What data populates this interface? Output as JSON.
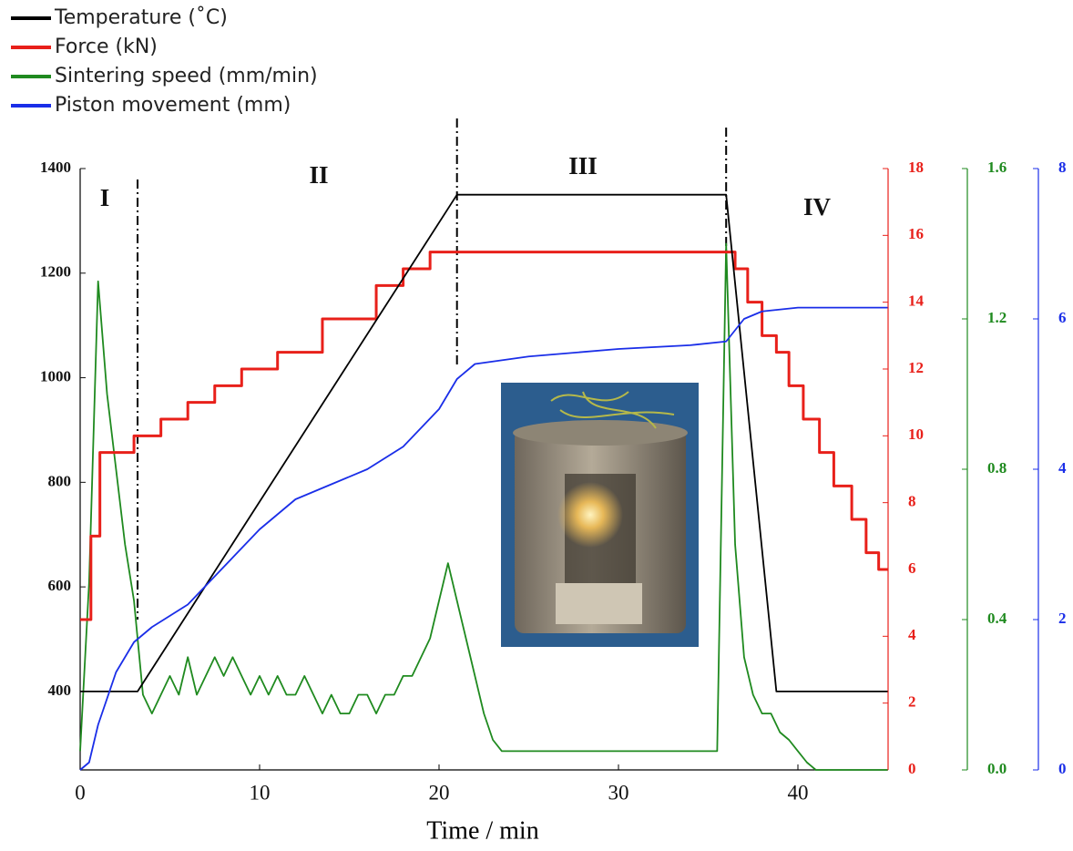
{
  "chart_data": {
    "type": "line",
    "xlabel": "Time / min",
    "xlim": [
      0,
      45
    ],
    "xticks": [
      0,
      10,
      20,
      30,
      40
    ],
    "ylim": [
      250,
      1400
    ],
    "yticks": [
      400,
      600,
      800,
      1000,
      1200,
      1400
    ],
    "y2lim": [
      0,
      18
    ],
    "y2ticks": [
      0,
      2,
      4,
      6,
      8,
      10,
      12,
      14,
      16,
      18
    ],
    "y3lim": [
      0,
      1.6
    ],
    "y3ticks": [
      {
        "value": 0,
        "label": "0.0"
      },
      0.4,
      0.8,
      1.2,
      1.6
    ],
    "y4lim": [
      0,
      8
    ],
    "y4ticks": [
      0,
      2,
      4,
      6,
      8
    ],
    "phases": [
      "I",
      "II",
      "III",
      "IV"
    ],
    "phase_boundaries": [
      3.2,
      21,
      36
    ],
    "series": [
      {
        "name": "Temperature (˚C)",
        "color": "#000000",
        "axis": "y",
        "x": [
          0,
          3.2,
          21,
          36,
          38.8,
          45
        ],
        "values": [
          400,
          400,
          1350,
          1350,
          400,
          400
        ]
      },
      {
        "name": "Force (kN)",
        "color": "#e8201a",
        "axis": "y2",
        "x": [
          0,
          0.6,
          0.6,
          1.1,
          1.1,
          3,
          3,
          4.5,
          4.5,
          6,
          6,
          7.5,
          7.5,
          9,
          9,
          11,
          11,
          13.5,
          13.5,
          16.5,
          16.5,
          18,
          18,
          19.5,
          19.5,
          36.5,
          36.5,
          37.2,
          37.2,
          38,
          38,
          38.8,
          38.8,
          39.5,
          39.5,
          40.3,
          40.3,
          41.2,
          41.2,
          42,
          42,
          43,
          43,
          43.8,
          43.8,
          44.5,
          44.5,
          45
        ],
        "values": [
          4.5,
          4.5,
          7,
          7,
          9.5,
          9.5,
          10,
          10,
          10.5,
          10.5,
          11,
          11,
          11.5,
          11.5,
          12,
          12,
          12.5,
          12.5,
          13.5,
          13.5,
          14.5,
          14.5,
          15,
          15,
          15.5,
          15.5,
          15,
          15,
          14,
          14,
          13,
          13,
          12.5,
          12.5,
          11.5,
          11.5,
          10.5,
          10.5,
          9.5,
          9.5,
          8.5,
          8.5,
          7.5,
          7.5,
          6.5,
          6.5,
          6,
          6
        ]
      },
      {
        "name": "Sintering speed (mm/min)",
        "color": "#1f8a1f",
        "axis": "y3",
        "x": [
          0,
          0.5,
          1,
          1.5,
          2,
          2.5,
          3,
          3.5,
          4,
          4.5,
          5,
          5.5,
          6,
          6.5,
          7,
          7.5,
          8,
          8.5,
          9,
          9.5,
          10,
          10.5,
          11,
          11.5,
          12,
          12.5,
          13,
          13.5,
          14,
          14.5,
          15,
          15.5,
          16,
          16.5,
          17,
          17.5,
          18,
          18.5,
          19,
          19.5,
          20,
          20.5,
          21,
          21.5,
          22,
          22.5,
          23,
          23.5,
          24,
          24.5,
          25,
          25.5,
          26,
          26.5,
          27,
          27.5,
          28,
          28.5,
          29,
          29.5,
          30,
          30.5,
          31,
          31.5,
          32,
          32.5,
          33,
          33.5,
          34,
          34.5,
          35,
          35.5,
          36,
          36.5,
          37,
          37.5,
          38,
          38.5,
          39,
          39.5,
          40,
          40.5,
          41,
          41.5,
          42,
          42.5,
          43,
          43.5,
          44,
          44.5,
          45
        ],
        "values": [
          0.05,
          0.5,
          1.3,
          1.0,
          0.8,
          0.6,
          0.45,
          0.2,
          0.15,
          0.2,
          0.25,
          0.2,
          0.3,
          0.2,
          0.25,
          0.3,
          0.25,
          0.3,
          0.25,
          0.2,
          0.25,
          0.2,
          0.25,
          0.2,
          0.2,
          0.25,
          0.2,
          0.15,
          0.2,
          0.15,
          0.15,
          0.2,
          0.2,
          0.15,
          0.2,
          0.2,
          0.25,
          0.25,
          0.3,
          0.35,
          0.45,
          0.55,
          0.45,
          0.35,
          0.25,
          0.15,
          0.08,
          0.05,
          0.05,
          0.05,
          0.05,
          0.05,
          0.05,
          0.05,
          0.05,
          0.05,
          0.05,
          0.05,
          0.05,
          0.05,
          0.05,
          0.05,
          0.05,
          0.05,
          0.05,
          0.05,
          0.05,
          0.05,
          0.05,
          0.05,
          0.05,
          0.05,
          1.4,
          0.6,
          0.3,
          0.2,
          0.15,
          0.15,
          0.1,
          0.08,
          0.05,
          0.02,
          0,
          0,
          0,
          0,
          0,
          0,
          0,
          0,
          0
        ]
      },
      {
        "name": "Piston movement (mm)",
        "color": "#1a2ee8",
        "axis": "y4",
        "x": [
          0,
          0.5,
          1,
          2,
          3,
          4,
          6,
          8,
          10,
          12,
          14,
          16,
          18,
          20,
          21,
          22,
          25,
          30,
          34,
          36,
          37,
          38,
          40,
          45
        ],
        "values": [
          0,
          0.1,
          0.6,
          1.3,
          1.7,
          1.9,
          2.2,
          2.7,
          3.2,
          3.6,
          3.8,
          4.0,
          4.3,
          4.8,
          5.2,
          5.4,
          5.5,
          5.6,
          5.65,
          5.7,
          6.0,
          6.1,
          6.15,
          6.15
        ]
      }
    ]
  }
}
